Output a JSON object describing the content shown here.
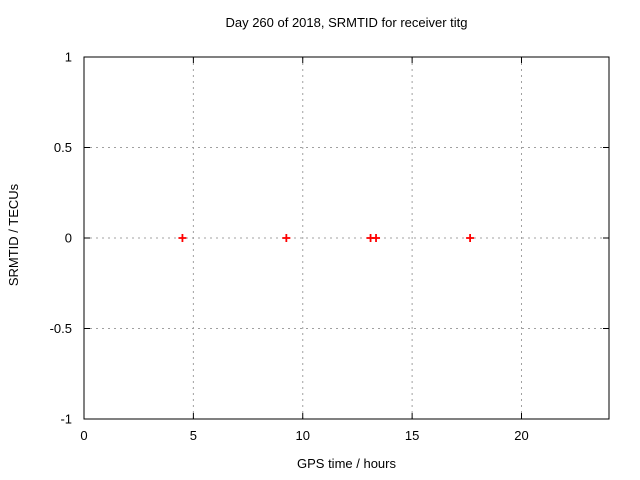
{
  "chart_data": {
    "type": "scatter",
    "title": "Day 260 of 2018, SRMTID for receiver titg",
    "xlabel": "GPS time / hours",
    "ylabel": "SRMTID / TECUs",
    "xlim": [
      0,
      24
    ],
    "ylim": [
      -1,
      1
    ],
    "x_ticks": [
      0,
      5,
      10,
      15,
      20
    ],
    "x_tick_labels": [
      "0",
      "5",
      "10",
      "15",
      "20"
    ],
    "y_ticks": [
      1,
      0.5,
      0,
      -0.5,
      -1
    ],
    "y_tick_labels": [
      "1",
      "0.5",
      "0",
      "-0.5",
      "-1"
    ],
    "grid": true,
    "grid_style": "dashed",
    "mirrored_ticks": true,
    "legend": false,
    "series": [
      {
        "name": "SRMTID",
        "marker": "plus",
        "x": [
          4.5,
          9.25,
          13.1,
          13.35,
          17.65
        ],
        "y": [
          0,
          0,
          0,
          0,
          0
        ]
      }
    ],
    "colors": {
      "marker": "#ff0000",
      "grid": "#a0a0a0",
      "border": "#000000",
      "background": "#ffffff",
      "text": "#000000"
    }
  }
}
